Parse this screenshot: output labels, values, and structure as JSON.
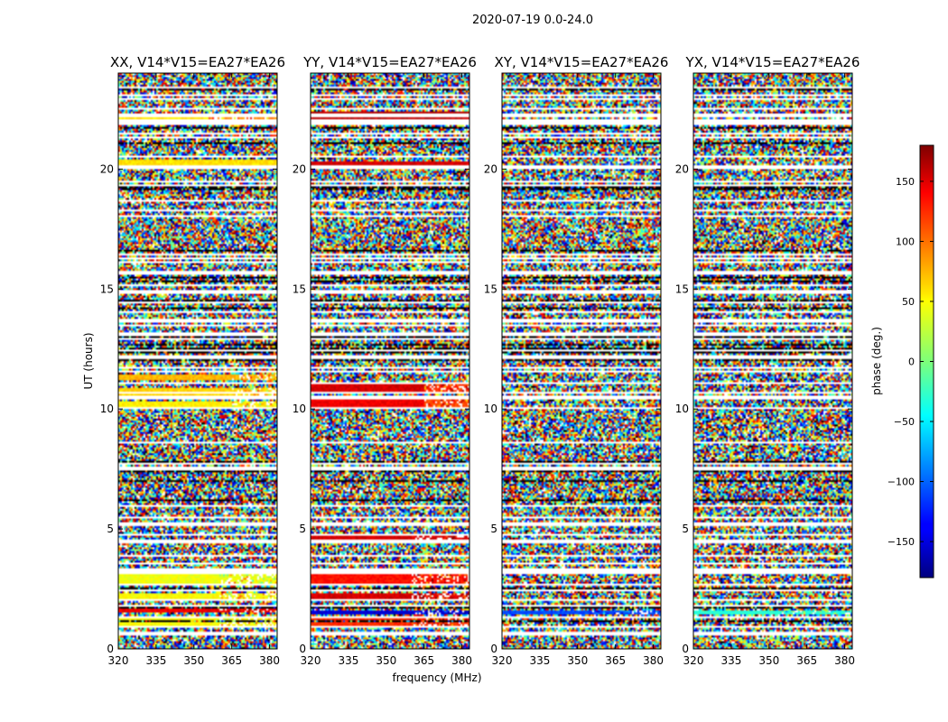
{
  "figure": {
    "suptitle": "2020-07-19 0.0-24.0",
    "xlabel": "frequency (MHz)",
    "ylabel": "UT (hours)",
    "colorbar_label": "phase (deg.)"
  },
  "chart_data": {
    "type": "heatmap",
    "xlim": [
      320,
      383
    ],
    "ylim": [
      0,
      24
    ],
    "xticks": [
      320,
      335,
      350,
      365,
      380
    ],
    "yticks": [
      0,
      5,
      10,
      15,
      20
    ],
    "xtick_labels": [
      "320",
      "335",
      "350",
      "365",
      "380"
    ],
    "ytick_labels": [
      "0",
      "5",
      "10",
      "15",
      "20"
    ],
    "colorbar": {
      "colormap": "jet",
      "range": [
        -180,
        180
      ],
      "ticks": [
        -150,
        -100,
        -50,
        0,
        50,
        100,
        150
      ],
      "tick_labels": [
        "−150",
        "−100",
        "−50",
        "0",
        "50",
        "100",
        "150"
      ],
      "label": "phase (deg.)"
    },
    "panels": [
      {
        "title": "XX, V14*V15=EA27*EA26",
        "bands": [
          {
            "t0": 0.9,
            "t1": 1.3,
            "phase": 45,
            "f_split": 360,
            "phase_after": 45
          },
          {
            "t0": 1.5,
            "t1": 1.7,
            "phase": 140,
            "f_split": 360,
            "phase_after": 140
          },
          {
            "t0": 2.1,
            "t1": 2.3,
            "phase": 45,
            "f_split": 360,
            "phase_after": 45
          },
          {
            "t0": 2.6,
            "t1": 3.1,
            "phase": 40,
            "f_split": 360,
            "phase_after": 40
          },
          {
            "t0": 10.0,
            "t1": 10.3,
            "phase": 50,
            "f_split": 365,
            "phase_after": 50
          },
          {
            "t0": 10.6,
            "t1": 10.9,
            "phase": 60,
            "f_split": 365,
            "phase_after": 60
          },
          {
            "t0": 11.2,
            "t1": 11.4,
            "phase": 70,
            "f_split": 365,
            "phase_after": 70
          },
          {
            "t0": 20.2,
            "t1": 20.4,
            "phase": 55,
            "f_split": 383,
            "phase_after": 55
          },
          {
            "t0": 22.1,
            "t1": 22.3,
            "phase": 55,
            "f_split": 355,
            "phase_after": 90
          }
        ]
      },
      {
        "title": "YY, V14*V15=EA27*EA26",
        "bands": [
          {
            "t0": 0.9,
            "t1": 1.3,
            "phase": 120,
            "f_split": 360,
            "phase_after": 120
          },
          {
            "t0": 1.4,
            "t1": 1.6,
            "phase": -150,
            "f_split": 360,
            "phase_after": -150
          },
          {
            "t0": 2.1,
            "t1": 2.3,
            "phase": 150,
            "f_split": 360,
            "phase_after": 150
          },
          {
            "t0": 2.6,
            "t1": 3.1,
            "phase": 130,
            "f_split": 360,
            "phase_after": 130
          },
          {
            "t0": 4.5,
            "t1": 4.7,
            "phase": 150,
            "f_split": 360,
            "phase_after": 150
          },
          {
            "t0": 10.1,
            "t1": 10.5,
            "phase": 140,
            "f_split": 365,
            "phase_after": 110
          },
          {
            "t0": 10.7,
            "t1": 11.0,
            "phase": 150,
            "f_split": 365,
            "phase_after": 120
          },
          {
            "t0": 20.2,
            "t1": 20.3,
            "phase": 150,
            "f_split": 383,
            "phase_after": 150
          },
          {
            "t0": 22.1,
            "t1": 22.4,
            "phase": 160,
            "f_split": 383,
            "phase_after": 160
          }
        ]
      },
      {
        "title": "XY, V14*V15=EA27*EA26",
        "bands": [
          {
            "t0": 1.4,
            "t1": 1.6,
            "phase": -110,
            "f_split": 355,
            "phase_after": -110
          }
        ]
      },
      {
        "title": "YX, V14*V15=EA27*EA26",
        "bands": [
          {
            "t0": 1.4,
            "t1": 1.6,
            "phase": -30,
            "f_split": 355,
            "phase_after": -30
          }
        ]
      }
    ]
  }
}
